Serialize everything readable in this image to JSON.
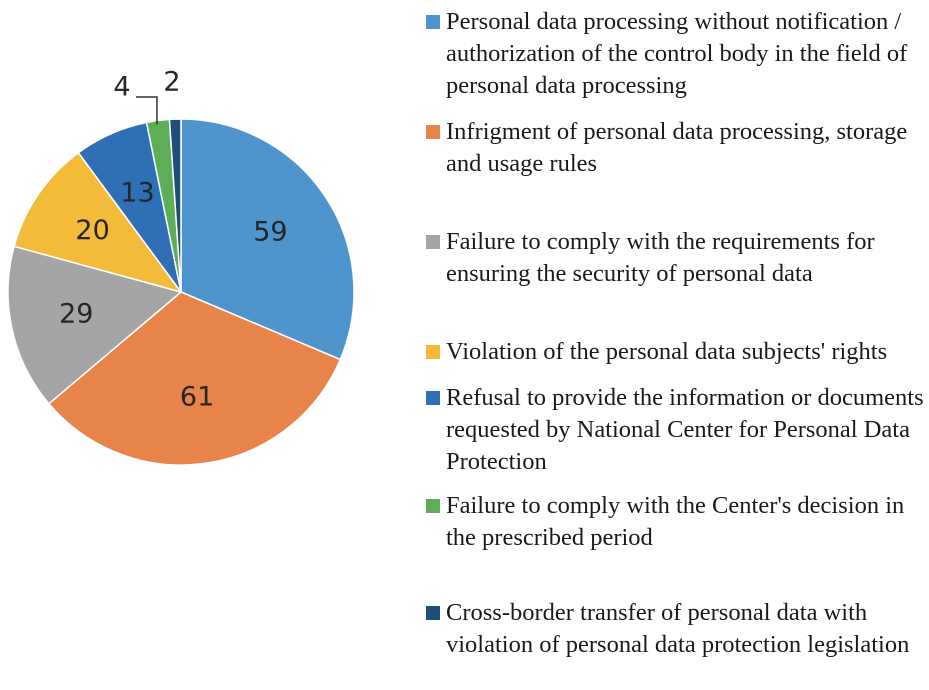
{
  "chart_data": {
    "type": "pie",
    "categories": [
      "Personal data processing without notification / authorization of the control body in the field of personal data processing",
      "Infrigment of personal data processing, storage and usage rules",
      "Failure to comply with the requirements for ensuring the security of personal data",
      "Violation of the personal data subjects' rights",
      "Refusal to provide the information or documents requested by National Center for Personal Data Protection",
      "Failure to comply with the Center's decision in the prescribed period",
      "Cross-border transfer of personal data with violation of personal data protection legislation"
    ],
    "values": [
      59,
      61,
      29,
      20,
      13,
      4,
      2
    ],
    "colors": [
      "#4e94cd",
      "#e8834a",
      "#a5a5a5",
      "#f4bb3b",
      "#2f6fb6",
      "#5fad56",
      "#1f4e79"
    ],
    "legend": "right"
  }
}
